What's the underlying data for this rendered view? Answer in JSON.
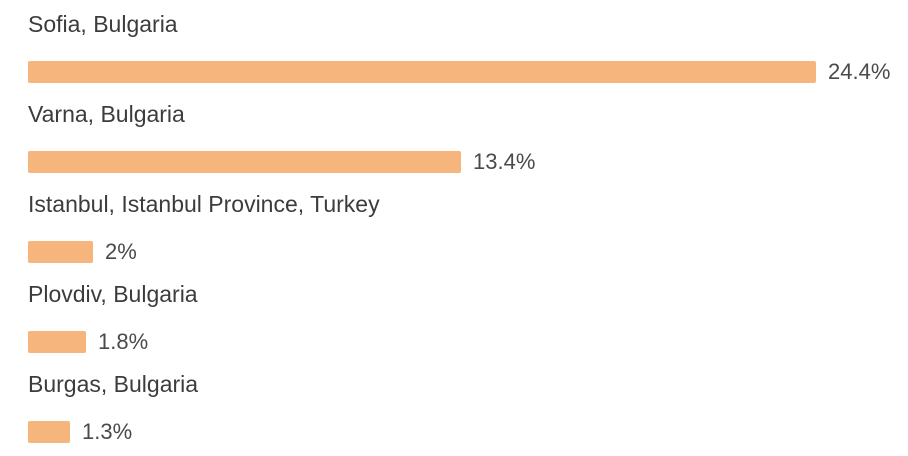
{
  "chart_data": {
    "type": "bar",
    "orientation": "horizontal",
    "categories": [
      "Sofia, Bulgaria",
      "Varna, Bulgaria",
      "Istanbul, Istanbul Province, Turkey",
      "Plovdiv, Bulgaria",
      "Burgas, Bulgaria"
    ],
    "values": [
      24.4,
      13.4,
      2,
      1.8,
      1.3
    ],
    "value_labels": [
      "24.4%",
      "13.4%",
      "2%",
      "1.8%",
      "1.3%"
    ],
    "unit": "%",
    "bar_color": "#f6b57c",
    "grid": false,
    "legend": "none"
  }
}
